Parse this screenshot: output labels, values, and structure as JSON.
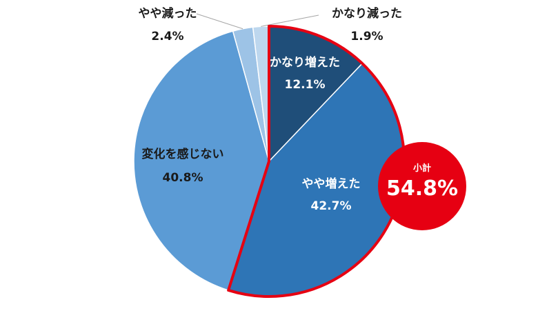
{
  "chart_data": {
    "type": "pie",
    "start": "12 o'clock",
    "direction": "clockwise",
    "slices": [
      {
        "label": "かなり増えた",
        "value": 12.1,
        "value_label": "12.1%",
        "color": "#1f4e79"
      },
      {
        "label": "やや増えた",
        "value": 42.7,
        "value_label": "42.7%",
        "color": "#2e75b6"
      },
      {
        "label": "変化を感じない",
        "value": 40.8,
        "value_label": "40.8%",
        "color": "#5b9bd5"
      },
      {
        "label": "やや減った",
        "value": 2.4,
        "value_label": "2.4%",
        "color": "#9dc3e6"
      },
      {
        "label": "かなり減った",
        "value": 1.9,
        "value_label": "1.9%",
        "color": "#bdd7ee"
      }
    ],
    "highlight": {
      "label": "小計",
      "value": 54.8,
      "value_label": "54.8%",
      "slices": [
        "かなり増えた",
        "やや増えた"
      ],
      "color": "#e60012"
    }
  }
}
